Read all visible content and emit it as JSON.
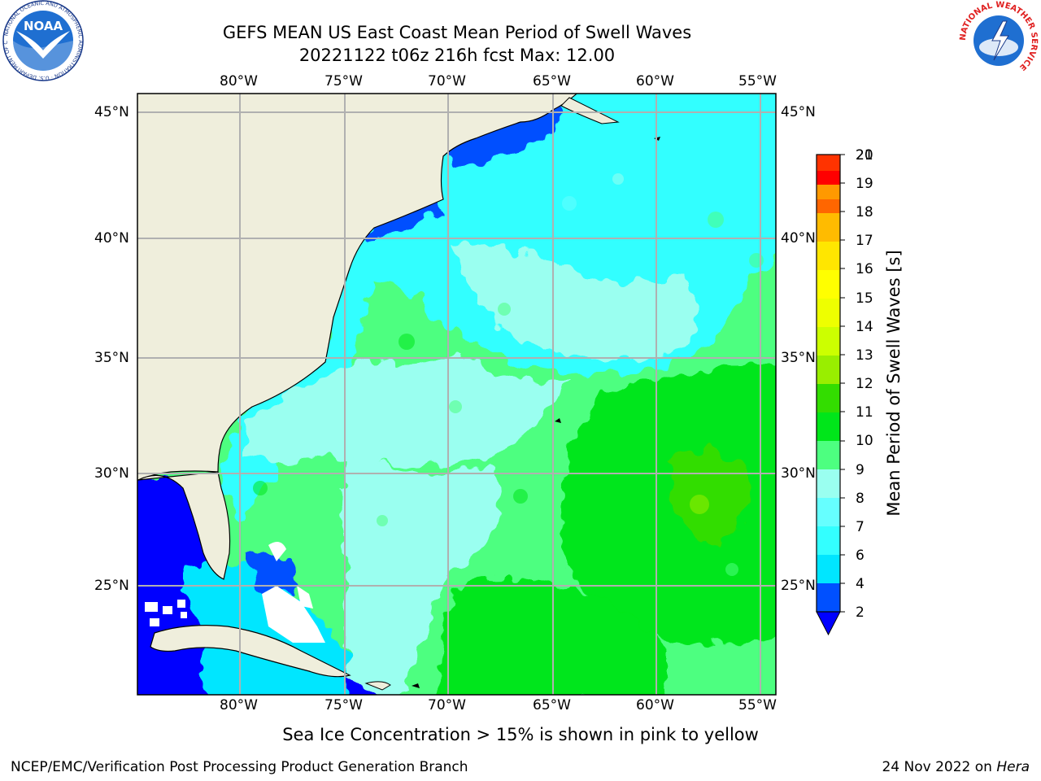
{
  "figure": {
    "title_line1": "GEFS MEAN US East Coast Mean Period of Swell Waves",
    "title_line2": "20221122 t06z 216h fcst   Max: 12.00",
    "caption": "Sea Ice Concentration > 15% is shown in pink to yellow",
    "footer_left": "NCEP/EMC/Verification Post Processing Product Generation Branch",
    "footer_right_date": "24 Nov 2022 on ",
    "footer_right_host": "Hera"
  },
  "map": {
    "lon_labels": [
      "80°W",
      "75°W",
      "70°W",
      "65°W",
      "60°W",
      "55°W"
    ],
    "lat_labels": [
      "45°N",
      "40°N",
      "35°N",
      "30°N",
      "25°N"
    ],
    "colors": {
      "land": "#efeedc",
      "ice": "#ffffff",
      "grid": "#b0b0b0"
    }
  },
  "colorbar": {
    "label": "Mean Period of Swell Waves [s]",
    "ticks": [
      "2",
      "4",
      "6",
      "7",
      "8",
      "9",
      "10",
      "11",
      "12",
      "13",
      "14",
      "15",
      "16",
      "17",
      "18",
      "19",
      "20",
      "21"
    ],
    "colors": [
      "#0050ff",
      "#00e6ff",
      "#33ffff",
      "#66ffff",
      "#9afff0",
      "#4dff80",
      "#00e61a",
      "#33dd00",
      "#99ee00",
      "#ccff00",
      "#eeff00",
      "#ffff00",
      "#ffe600",
      "#ffbb00",
      "#ff9900",
      "#ff6600",
      "#ff3300",
      "#ff0000"
    ],
    "extend_color": "#0000ff"
  },
  "logos": {
    "noaa_text": "NOAA",
    "noaa_ring": "NATIONAL OCEANIC AND ATMOSPHERIC ADMINISTRATION · U.S. DEPARTMENT OF COMMERCE",
    "nws_ring": "NATIONAL WEATHER SERVICE"
  }
}
